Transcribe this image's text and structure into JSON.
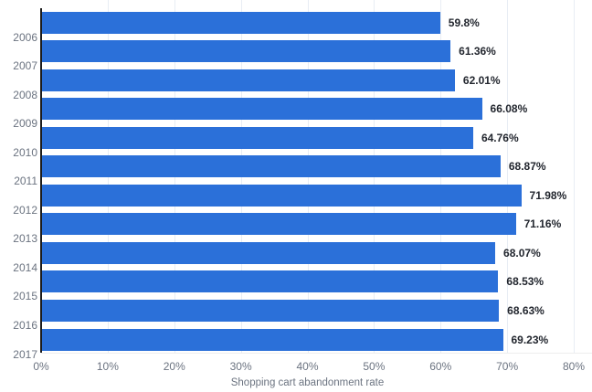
{
  "chart_data": {
    "type": "bar",
    "orientation": "horizontal",
    "xlabel": "Shopping cart abandonment rate",
    "categories": [
      "2006",
      "2007",
      "2008",
      "2009",
      "2010",
      "2011",
      "2012",
      "2013",
      "2014",
      "2015",
      "2016",
      "2017"
    ],
    "values": [
      59.8,
      61.36,
      62.01,
      66.08,
      64.76,
      68.87,
      71.98,
      71.16,
      68.07,
      68.53,
      68.63,
      69.23
    ],
    "value_labels": [
      "59.8%",
      "61.36%",
      "62.01%",
      "66.08%",
      "64.76%",
      "68.87%",
      "71.98%",
      "71.16%",
      "68.07%",
      "68.53%",
      "68.63%",
      "69.23%"
    ],
    "x_tick_labels": [
      "0%",
      "10%",
      "20%",
      "30%",
      "40%",
      "50%",
      "60%",
      "70%",
      "80%"
    ],
    "xlim": [
      0,
      80
    ],
    "grid": true,
    "legend": false,
    "colors": {
      "bar": "#2b70d9",
      "axis_line": "#1c1c1c",
      "gridline": "#e8edf4",
      "value_label": "#22262e",
      "tick_label": "#6b7380",
      "category_label": "#6b7380",
      "xlabel": "#6b7380",
      "background": "#ffffff"
    }
  }
}
